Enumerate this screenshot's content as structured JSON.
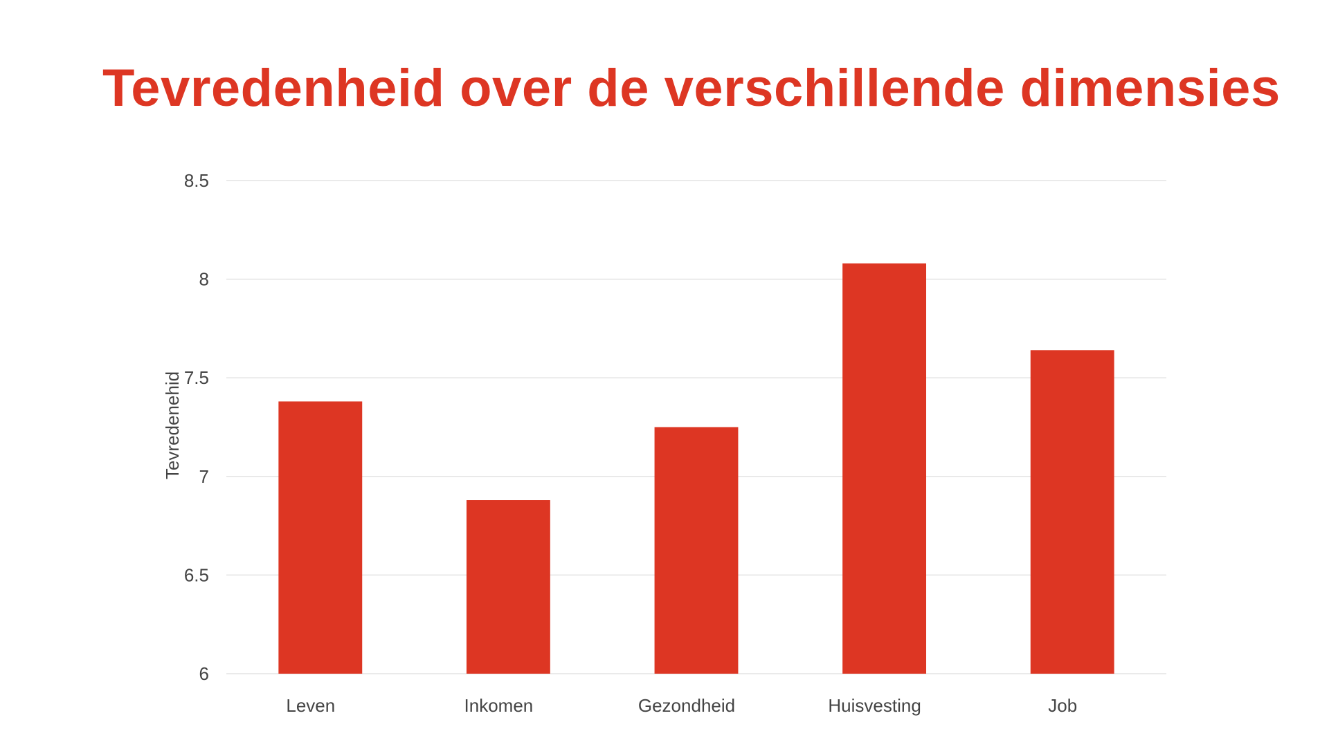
{
  "slide": {
    "title": "Tevredenheid over de verschillende dimensies"
  },
  "colors": {
    "title": "#DD3623",
    "bar": "#DD3623",
    "gridline": "#E3E3E3",
    "axis_text": "#444444"
  },
  "chart_data": {
    "type": "bar",
    "title": "",
    "xlabel": "",
    "ylabel": "Tevredenehid",
    "categories": [
      "Leven",
      "Inkomen",
      "Gezondheid",
      "Huisvesting",
      "Job"
    ],
    "series": [
      {
        "values": [
          7.38,
          6.88,
          7.25,
          8.08,
          7.64
        ]
      }
    ],
    "ylim": [
      6,
      8.5
    ],
    "yticks": [
      6,
      6.5,
      7,
      7.5,
      8,
      8.5
    ],
    "ytick_labels": [
      "6",
      "6.5",
      "7",
      "7.5",
      "8",
      "8.5"
    ],
    "grid": true,
    "legend": "none"
  }
}
